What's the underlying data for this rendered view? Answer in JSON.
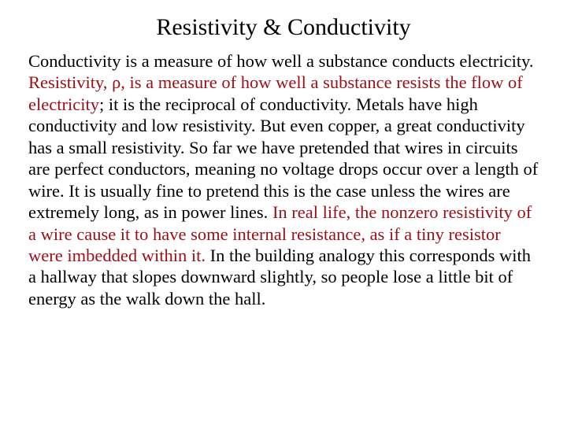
{
  "title": "Resistivity & Conductivity",
  "colors": {
    "text": "#000000",
    "highlight": "#9a0f16",
    "background": "#ffffff"
  },
  "typography": {
    "title_fontsize": 30,
    "body_fontsize": 22.5,
    "font_family": "Times New Roman"
  },
  "body": {
    "p1a": "Conductivity is a measure of how well a substance conducts electricity. ",
    "p1b": "Resistivity, ",
    "rho": "ρ",
    "p1c": ", is a measure of how well a substance resists the flow of electricity",
    "p1d": "; it is the reciprocal of conductivity. Metals have high conductivity and low resistivity. But even copper, a great conductivity has a small resistivity. So far we have pretended that wires in circuits are perfect conductors, meaning no voltage drops occur over a length of wire. It is usually fine to pretend this is the case unless the wires are extremely long, as in power lines. ",
    "p1e": "In real life, the nonzero resistivity of a wire cause it to have some internal resistance, as if a tiny resistor were imbedded within it.",
    "p1f": " In the building analogy this corresponds with a hallway that slopes downward slightly, so people lose a little bit of energy as the walk down the hall."
  }
}
